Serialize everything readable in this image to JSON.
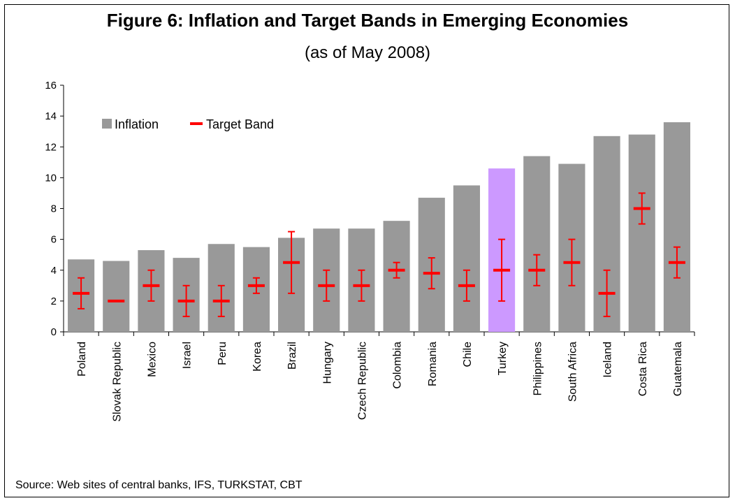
{
  "title": "Figure 6: Inflation and Target Bands in Emerging Economies",
  "subtitle": "(as of May 2008)",
  "source": "Source: Web sites of central banks, IFS, TURKSTAT, CBT",
  "colors": {
    "inflation_bar": "#999999",
    "highlight_bar": "#cc99ff",
    "target_band": "#ff0000"
  },
  "chart_data": {
    "type": "bar",
    "categories": [
      "Poland",
      "Slovak Republic",
      "Mexico",
      "Israel",
      "Peru",
      "Korea",
      "Brazil",
      "Hungary",
      "Czech Republic",
      "Colombia",
      "Romania",
      "Chile",
      "Turkey",
      "Philippines",
      "South Africa",
      "Iceland",
      "Costa Rica",
      "Guatemala"
    ],
    "highlight_category": "Turkey",
    "ylim": [
      0,
      16
    ],
    "yticks": [
      0,
      2,
      4,
      6,
      8,
      10,
      12,
      14,
      16
    ],
    "legend": {
      "placement": "top-left",
      "entries": [
        "Inflation",
        "Target Band"
      ]
    },
    "series": [
      {
        "name": "Inflation",
        "values": [
          4.7,
          4.6,
          5.3,
          4.8,
          5.7,
          5.5,
          6.1,
          6.7,
          6.7,
          7.2,
          8.7,
          9.5,
          10.6,
          11.4,
          10.9,
          12.7,
          12.8,
          13.6
        ]
      },
      {
        "name": "Target Band",
        "point": [
          2.5,
          2.0,
          3.0,
          2.0,
          2.0,
          3.0,
          4.5,
          3.0,
          3.0,
          4.0,
          3.8,
          3.0,
          4.0,
          4.0,
          4.5,
          2.5,
          8.0,
          4.5
        ],
        "low": [
          1.5,
          2.0,
          2.0,
          1.0,
          1.0,
          2.5,
          2.5,
          2.0,
          2.0,
          3.5,
          2.8,
          2.0,
          2.0,
          3.0,
          3.0,
          1.0,
          7.0,
          3.5
        ],
        "high": [
          3.5,
          2.0,
          4.0,
          3.0,
          3.0,
          3.5,
          6.5,
          4.0,
          4.0,
          4.5,
          4.8,
          4.0,
          6.0,
          5.0,
          6.0,
          4.0,
          9.0,
          5.5
        ]
      }
    ],
    "grid": false
  }
}
